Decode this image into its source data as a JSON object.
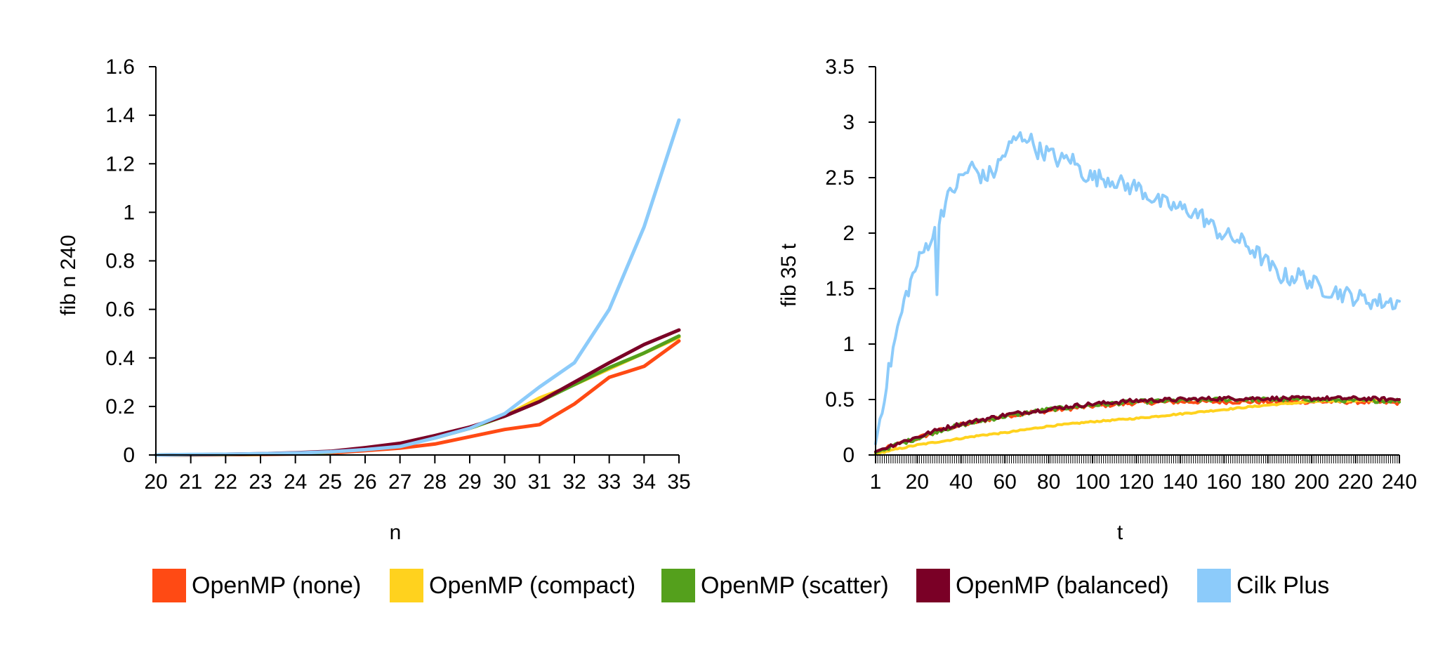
{
  "legend": {
    "items": [
      {
        "name": "OpenMP (none)",
        "color": "#ff4a14"
      },
      {
        "name": "OpenMP (compact)",
        "color": "#ffd21e"
      },
      {
        "name": "OpenMP (scatter)",
        "color": "#54a01c"
      },
      {
        "name": "OpenMP (balanced)",
        "color": "#7a0026"
      },
      {
        "name": "Cilk Plus",
        "color": "#8ccbfa"
      }
    ]
  },
  "chart_data": [
    {
      "type": "line",
      "xlabel": "n",
      "ylabel": "fib n 240",
      "x": [
        20,
        21,
        22,
        23,
        24,
        25,
        26,
        27,
        28,
        29,
        30,
        31,
        32,
        33,
        34,
        35
      ],
      "xlim": [
        20,
        35
      ],
      "ylim": [
        0,
        1.6
      ],
      "yticks": [
        "0",
        "0.2",
        "0.4",
        "0.6",
        "0.8",
        "1",
        "1.2",
        "1.4",
        "1.6"
      ],
      "xticks": [
        "20",
        "21",
        "22",
        "23",
        "24",
        "25",
        "26",
        "27",
        "28",
        "29",
        "30",
        "31",
        "32",
        "33",
        "34",
        "35"
      ],
      "grid": false,
      "series": [
        {
          "name": "OpenMP (none)",
          "color": "#ff4a14",
          "values": [
            0.0,
            0.0,
            0.001,
            0.002,
            0.004,
            0.008,
            0.018,
            0.028,
            0.045,
            0.075,
            0.105,
            0.125,
            0.21,
            0.32,
            0.365,
            0.47
          ]
        },
        {
          "name": "OpenMP (compact)",
          "color": "#ffd21e",
          "values": [
            0.0,
            0.001,
            0.002,
            0.004,
            0.007,
            0.012,
            0.024,
            0.038,
            0.07,
            0.11,
            0.16,
            0.235,
            0.29,
            0.355,
            0.42,
            0.485
          ]
        },
        {
          "name": "OpenMP (scatter)",
          "color": "#54a01c",
          "values": [
            0.0,
            0.001,
            0.002,
            0.004,
            0.007,
            0.012,
            0.025,
            0.04,
            0.07,
            0.11,
            0.16,
            0.22,
            0.29,
            0.36,
            0.42,
            0.49
          ]
        },
        {
          "name": "OpenMP (balanced)",
          "color": "#7a0026",
          "values": [
            0.0,
            0.001,
            0.003,
            0.005,
            0.009,
            0.015,
            0.03,
            0.048,
            0.08,
            0.115,
            0.16,
            0.22,
            0.3,
            0.38,
            0.455,
            0.515
          ]
        },
        {
          "name": "Cilk Plus",
          "color": "#8ccbfa",
          "values": [
            0.0,
            0.002,
            0.003,
            0.005,
            0.008,
            0.013,
            0.022,
            0.035,
            0.07,
            0.11,
            0.17,
            0.28,
            0.38,
            0.6,
            0.94,
            1.38
          ]
        }
      ]
    },
    {
      "type": "line",
      "xlabel": "t",
      "ylabel": "fib 35 t",
      "xlim": [
        1,
        240
      ],
      "ylim": [
        0,
        3.5
      ],
      "xticks": [
        "1",
        "20",
        "40",
        "60",
        "80",
        "100",
        "120",
        "140",
        "160",
        "180",
        "200",
        "220",
        "240"
      ],
      "yticks": [
        "0",
        "0.5",
        "1",
        "1.5",
        "2",
        "2.5",
        "3",
        "3.5"
      ],
      "grid": false,
      "x_sampling": "every integer t from 1 to 240",
      "series": [
        {
          "name": "OpenMP (none)",
          "color": "#ff4a14",
          "anchors": [
            [
              1,
              0.02
            ],
            [
              10,
              0.09
            ],
            [
              20,
              0.15
            ],
            [
              30,
              0.22
            ],
            [
              40,
              0.27
            ],
            [
              50,
              0.31
            ],
            [
              60,
              0.35
            ],
            [
              70,
              0.38
            ],
            [
              80,
              0.4
            ],
            [
              90,
              0.42
            ],
            [
              100,
              0.44
            ],
            [
              120,
              0.47
            ],
            [
              140,
              0.48
            ],
            [
              160,
              0.48
            ],
            [
              180,
              0.48
            ],
            [
              200,
              0.48
            ],
            [
              220,
              0.48
            ],
            [
              240,
              0.47
            ]
          ]
        },
        {
          "name": "OpenMP (compact)",
          "color": "#ffd21e",
          "anchors": [
            [
              1,
              0.01
            ],
            [
              10,
              0.05
            ],
            [
              20,
              0.09
            ],
            [
              30,
              0.12
            ],
            [
              40,
              0.15
            ],
            [
              50,
              0.18
            ],
            [
              60,
              0.2
            ],
            [
              70,
              0.23
            ],
            [
              80,
              0.26
            ],
            [
              90,
              0.28
            ],
            [
              100,
              0.3
            ],
            [
              120,
              0.33
            ],
            [
              140,
              0.37
            ],
            [
              160,
              0.41
            ],
            [
              180,
              0.45
            ],
            [
              200,
              0.48
            ],
            [
              220,
              0.49
            ],
            [
              240,
              0.49
            ]
          ]
        },
        {
          "name": "OpenMP (scatter)",
          "color": "#54a01c",
          "anchors": [
            [
              1,
              0.02
            ],
            [
              10,
              0.09
            ],
            [
              20,
              0.15
            ],
            [
              30,
              0.22
            ],
            [
              40,
              0.27
            ],
            [
              50,
              0.31
            ],
            [
              60,
              0.35
            ],
            [
              70,
              0.38
            ],
            [
              80,
              0.41
            ],
            [
              90,
              0.43
            ],
            [
              100,
              0.45
            ],
            [
              120,
              0.48
            ],
            [
              140,
              0.49
            ],
            [
              160,
              0.5
            ],
            [
              180,
              0.5
            ],
            [
              200,
              0.5
            ],
            [
              220,
              0.49
            ],
            [
              240,
              0.49
            ]
          ]
        },
        {
          "name": "OpenMP (balanced)",
          "color": "#7a0026",
          "anchors": [
            [
              1,
              0.03
            ],
            [
              10,
              0.1
            ],
            [
              20,
              0.16
            ],
            [
              30,
              0.23
            ],
            [
              40,
              0.28
            ],
            [
              50,
              0.32
            ],
            [
              60,
              0.36
            ],
            [
              70,
              0.39
            ],
            [
              80,
              0.41
            ],
            [
              90,
              0.44
            ],
            [
              100,
              0.46
            ],
            [
              120,
              0.49
            ],
            [
              140,
              0.5
            ],
            [
              160,
              0.51
            ],
            [
              180,
              0.51
            ],
            [
              200,
              0.51
            ],
            [
              220,
              0.51
            ],
            [
              240,
              0.5
            ]
          ]
        },
        {
          "name": "Cilk Plus",
          "color": "#8ccbfa",
          "anchors": [
            [
              1,
              0.1
            ],
            [
              5,
              0.55
            ],
            [
              10,
              1.05
            ],
            [
              15,
              1.45
            ],
            [
              20,
              1.72
            ],
            [
              25,
              1.92
            ],
            [
              28,
              2.0
            ],
            [
              29,
              1.45
            ],
            [
              30,
              2.15
            ],
            [
              35,
              2.35
            ],
            [
              40,
              2.5
            ],
            [
              45,
              2.6
            ],
            [
              50,
              2.5
            ],
            [
              55,
              2.55
            ],
            [
              60,
              2.72
            ],
            [
              65,
              2.85
            ],
            [
              70,
              2.88
            ],
            [
              75,
              2.75
            ],
            [
              80,
              2.72
            ],
            [
              85,
              2.65
            ],
            [
              90,
              2.68
            ],
            [
              95,
              2.55
            ],
            [
              100,
              2.5
            ],
            [
              105,
              2.5
            ],
            [
              110,
              2.48
            ],
            [
              115,
              2.42
            ],
            [
              120,
              2.42
            ],
            [
              125,
              2.35
            ],
            [
              130,
              2.28
            ],
            [
              135,
              2.25
            ],
            [
              140,
              2.22
            ],
            [
              145,
              2.2
            ],
            [
              150,
              2.15
            ],
            [
              155,
              2.05
            ],
            [
              160,
              1.98
            ],
            [
              165,
              1.95
            ],
            [
              170,
              1.9
            ],
            [
              175,
              1.82
            ],
            [
              180,
              1.72
            ],
            [
              185,
              1.62
            ],
            [
              190,
              1.6
            ],
            [
              195,
              1.62
            ],
            [
              200,
              1.55
            ],
            [
              205,
              1.5
            ],
            [
              210,
              1.48
            ],
            [
              215,
              1.45
            ],
            [
              220,
              1.42
            ],
            [
              225,
              1.4
            ],
            [
              230,
              1.38
            ],
            [
              235,
              1.38
            ],
            [
              240,
              1.38
            ]
          ]
        }
      ]
    }
  ]
}
